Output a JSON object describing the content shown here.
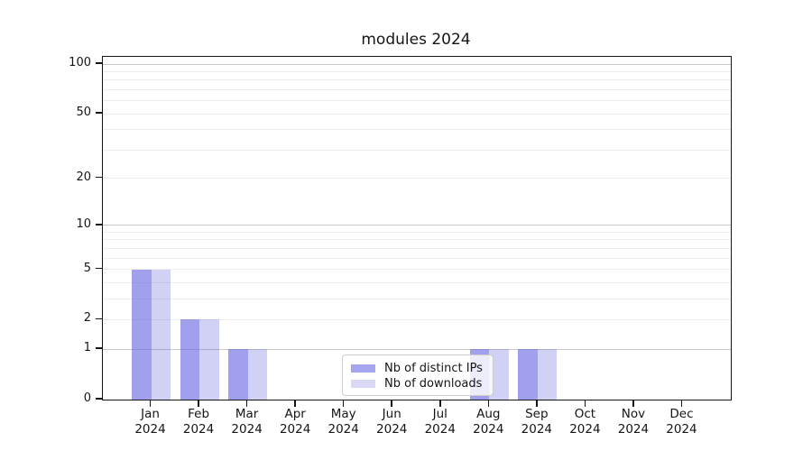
{
  "chart_data": {
    "type": "bar",
    "title": "modules 2024",
    "categories": [
      "Jan",
      "Feb",
      "Mar",
      "Apr",
      "May",
      "Jun",
      "Jul",
      "Aug",
      "Sep",
      "Oct",
      "Nov",
      "Dec"
    ],
    "category_year": "2024",
    "series": [
      {
        "name": "Nb of distinct IPs",
        "color": "rgba(102,102,226,0.62)",
        "legend_color": "#a5a5ef",
        "values": [
          5,
          2,
          1,
          0,
          0,
          0,
          0,
          1,
          1,
          0,
          0,
          0
        ]
      },
      {
        "name": "Nb of downloads",
        "color": "rgba(102,102,226,0.30)",
        "legend_color": "#d9d9f6",
        "values": [
          5,
          2,
          1,
          0,
          0,
          0,
          0,
          1,
          1,
          0,
          0,
          0
        ]
      }
    ],
    "y_ticks": [
      100,
      50,
      20,
      10,
      5,
      2,
      1,
      0
    ],
    "y_scale": "log1p",
    "ylim": [
      0,
      110
    ],
    "grid": "horizontal",
    "legend_position": "bottom-center"
  }
}
